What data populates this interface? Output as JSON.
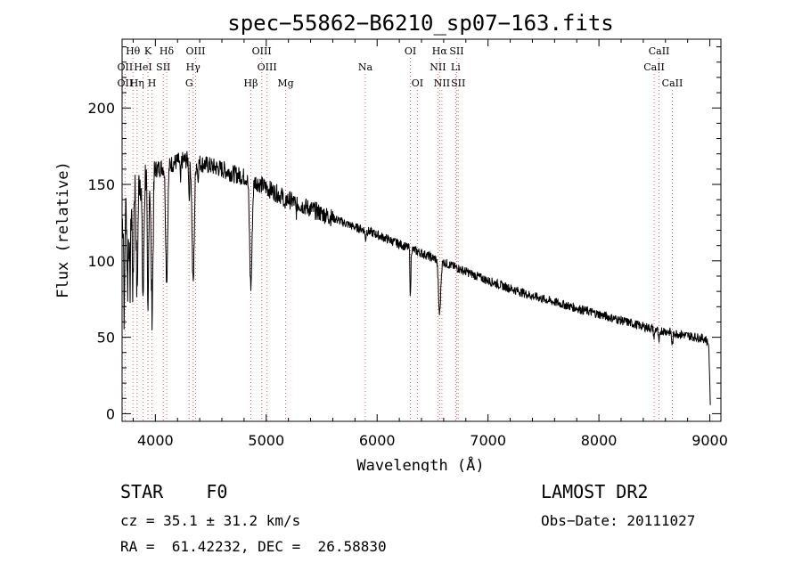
{
  "chart_data": {
    "type": "line",
    "title": "spec−55862−B6210_sp07−163.fits",
    "xlabel": "Wavelength (Å)",
    "ylabel": "Flux (relative)",
    "xlim": [
      3700,
      9100
    ],
    "ylim": [
      -5,
      245
    ],
    "x_ticks": [
      4000,
      5000,
      6000,
      7000,
      8000,
      9000
    ],
    "y_ticks": [
      0,
      50,
      100,
      150,
      200
    ],
    "continuum": [
      [
        3700,
        125
      ],
      [
        3760,
        140
      ],
      [
        3800,
        150
      ],
      [
        3900,
        158
      ],
      [
        4000,
        160
      ],
      [
        4100,
        162
      ],
      [
        4200,
        165
      ],
      [
        4300,
        166
      ],
      [
        4400,
        164
      ],
      [
        4500,
        162
      ],
      [
        4600,
        160
      ],
      [
        4700,
        157
      ],
      [
        4800,
        155
      ],
      [
        4900,
        152
      ],
      [
        5000,
        148
      ],
      [
        5100,
        144
      ],
      [
        5200,
        140
      ],
      [
        5300,
        137
      ],
      [
        5400,
        134
      ],
      [
        5500,
        131
      ],
      [
        5600,
        128
      ],
      [
        5700,
        125
      ],
      [
        5800,
        122
      ],
      [
        5900,
        120
      ],
      [
        6000,
        117
      ],
      [
        6100,
        114
      ],
      [
        6200,
        111
      ],
      [
        6300,
        108
      ],
      [
        6400,
        105
      ],
      [
        6500,
        102
      ],
      [
        6600,
        99
      ],
      [
        6700,
        96
      ],
      [
        6800,
        93
      ],
      [
        6900,
        90
      ],
      [
        7000,
        87
      ],
      [
        7200,
        82
      ],
      [
        7400,
        77
      ],
      [
        7600,
        73
      ],
      [
        7800,
        69
      ],
      [
        8000,
        65
      ],
      [
        8200,
        61
      ],
      [
        8400,
        57
      ],
      [
        8600,
        54
      ],
      [
        8800,
        51
      ],
      [
        8960,
        49
      ],
      [
        8990,
        45
      ],
      [
        9000,
        20
      ],
      [
        9005,
        2
      ]
    ],
    "absorption_lines": [
      {
        "wavelength": 3720,
        "depth": 70,
        "width": 4
      },
      {
        "wavelength": 3750,
        "depth": 55,
        "width": 5
      },
      {
        "wavelength": 3771,
        "depth": 60,
        "width": 6
      },
      {
        "wavelength": 3798,
        "depth": 70,
        "width": 6
      },
      {
        "wavelength": 3835,
        "depth": 75,
        "width": 7
      },
      {
        "wavelength": 3889,
        "depth": 80,
        "width": 8
      },
      {
        "wavelength": 3933,
        "depth": 100,
        "width": 6
      },
      {
        "wavelength": 3970,
        "depth": 90,
        "width": 9
      },
      {
        "wavelength": 4102,
        "depth": 75,
        "width": 9
      },
      {
        "wavelength": 4227,
        "depth": 15,
        "width": 4
      },
      {
        "wavelength": 4305,
        "depth": 25,
        "width": 4
      },
      {
        "wavelength": 4341,
        "depth": 80,
        "width": 10
      },
      {
        "wavelength": 4384,
        "depth": 10,
        "width": 4
      },
      {
        "wavelength": 4861,
        "depth": 70,
        "width": 11
      },
      {
        "wavelength": 5170,
        "depth": 8,
        "width": 6
      },
      {
        "wavelength": 5270,
        "depth": 6,
        "width": 5
      },
      {
        "wavelength": 5895,
        "depth": 6,
        "width": 5
      },
      {
        "wavelength": 6300,
        "depth": 32,
        "width": 4
      },
      {
        "wavelength": 6563,
        "depth": 35,
        "width": 10
      },
      {
        "wavelength": 8498,
        "depth": 6,
        "width": 5
      },
      {
        "wavelength": 8542,
        "depth": 9,
        "width": 6
      },
      {
        "wavelength": 8662,
        "depth": 8,
        "width": 6
      }
    ],
    "noise_amplitude": 3,
    "line_markers": [
      {
        "label": "Hθ",
        "wavelength": 3798,
        "row": 0
      },
      {
        "label": "K",
        "wavelength": 3933,
        "row": 0
      },
      {
        "label": "Hδ",
        "wavelength": 4102,
        "row": 0
      },
      {
        "label": "OIII",
        "wavelength": 4363,
        "row": 0
      },
      {
        "label": "OIII",
        "wavelength": 4959,
        "row": 0
      },
      {
        "label": "OI",
        "wavelength": 6300,
        "row": 0
      },
      {
        "label": "Hα",
        "wavelength": 6563,
        "row": 0
      },
      {
        "label": "SII",
        "wavelength": 6717,
        "row": 0
      },
      {
        "label": "CaII",
        "wavelength": 8542,
        "row": 0
      },
      {
        "label": "OII",
        "wavelength": 3727,
        "row": 1
      },
      {
        "label": "HeI",
        "wavelength": 3889,
        "row": 1
      },
      {
        "label": "SII",
        "wavelength": 4072,
        "row": 1
      },
      {
        "label": "Hγ",
        "wavelength": 4341,
        "row": 1
      },
      {
        "label": "OIII",
        "wavelength": 5007,
        "row": 1
      },
      {
        "label": "Na",
        "wavelength": 5893,
        "row": 1
      },
      {
        "label": "NII",
        "wavelength": 6548,
        "row": 1
      },
      {
        "label": "Li",
        "wavelength": 6708,
        "row": 1
      },
      {
        "label": "CaII",
        "wavelength": 8498,
        "row": 1
      },
      {
        "label": "OII",
        "wavelength": 3727,
        "row": 2
      },
      {
        "label": "Hη",
        "wavelength": 3835,
        "row": 2
      },
      {
        "label": "H",
        "wavelength": 3970,
        "row": 2
      },
      {
        "label": "G",
        "wavelength": 4305,
        "row": 2
      },
      {
        "label": "Hβ",
        "wavelength": 4861,
        "row": 2
      },
      {
        "label": "Mg",
        "wavelength": 5175,
        "row": 2
      },
      {
        "label": "OI",
        "wavelength": 6363,
        "row": 2
      },
      {
        "label": "NII",
        "wavelength": 6584,
        "row": 2
      },
      {
        "label": "SII",
        "wavelength": 6731,
        "row": 2
      },
      {
        "label": "CaII",
        "wavelength": 8662,
        "row": 2
      }
    ],
    "marker_line_color": "#e06060",
    "grid": false
  },
  "info": {
    "object_class": "STAR",
    "subclass": "F0",
    "survey": "LAMOST DR2",
    "cz": "cz = 35.1 ± 31.2 km/s",
    "obs_date": "Obs−Date: 20111027",
    "radec": "RA =  61.42232, DEC =  26.58830"
  }
}
